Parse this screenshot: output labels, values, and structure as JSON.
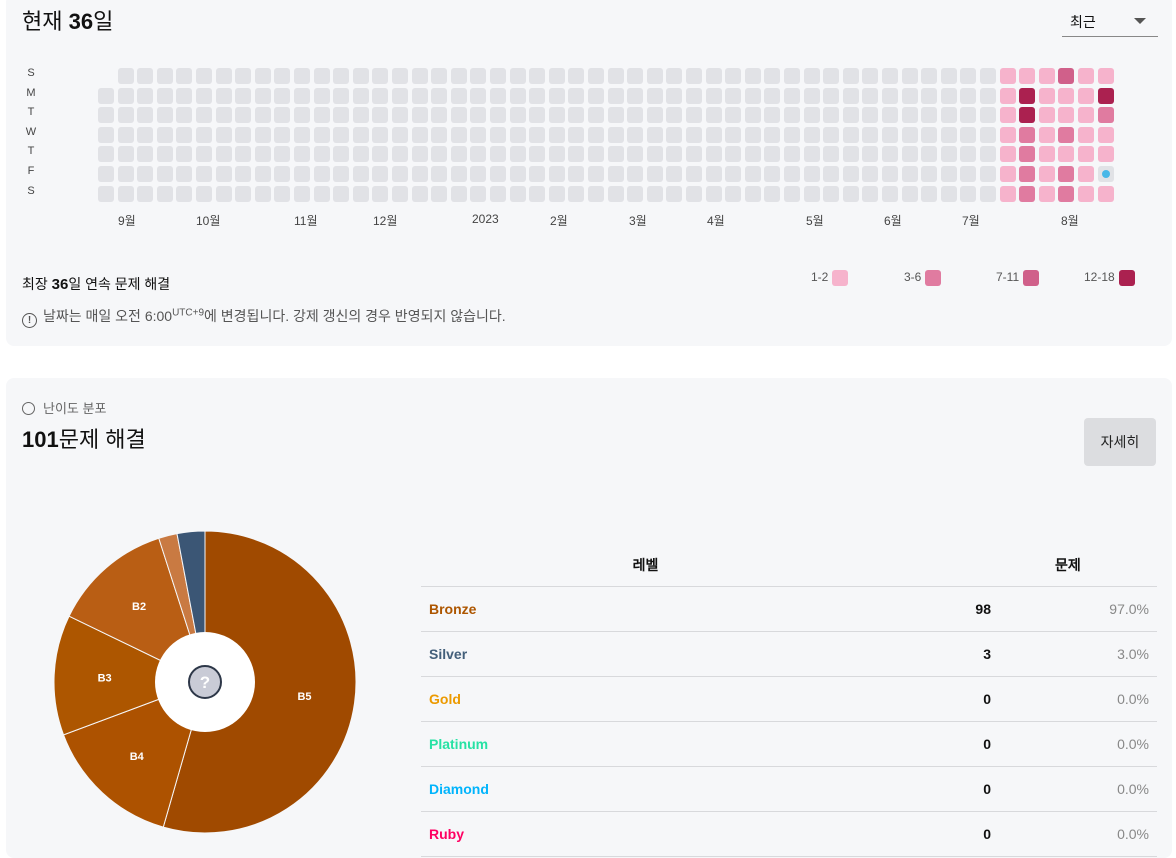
{
  "header": {
    "title_prefix": "현재 ",
    "streak": "36",
    "title_suffix": "일"
  },
  "period_select": {
    "selected": "최근"
  },
  "day_labels": [
    "S",
    "M",
    "T",
    "W",
    "T",
    "F",
    "S"
  ],
  "month_labels": [
    "9월",
    "10월",
    "11월",
    "12월",
    "2023",
    "2월",
    "3월",
    "4월",
    "5월",
    "6월",
    "7월",
    "8월"
  ],
  "heatmap": {
    "weeks": 52,
    "first_week_start_day": 1,
    "last_week_end_day": 6,
    "colors": {
      "0": "#e1e2e6",
      "1": "#f6b3cc",
      "2": "#e07ba0",
      "3": "#d0608a",
      "4": "#ab2150"
    },
    "active_weeks": [
      [
        1,
        1,
        1,
        1,
        1,
        1,
        1
      ],
      [
        1,
        4,
        4,
        2,
        2,
        2,
        2
      ],
      [
        1,
        1,
        1,
        1,
        1,
        1,
        1
      ],
      [
        3,
        1,
        1,
        2,
        1,
        2,
        2
      ],
      [
        1,
        1,
        1,
        1,
        1,
        1,
        1
      ],
      [
        1,
        4,
        2,
        1,
        1,
        "today",
        1
      ]
    ],
    "today_dot_color": "#49b8e8"
  },
  "max_streak": {
    "prefix": "최장 ",
    "value": "36",
    "suffix": "일 연속 문제 해결"
  },
  "legend": [
    {
      "label": "1-2",
      "color": "#f6b3cc"
    },
    {
      "label": "3-6",
      "color": "#e07ba0"
    },
    {
      "label": "7-11",
      "color": "#d0608a"
    },
    {
      "label": "12-18",
      "color": "#ab2150"
    }
  ],
  "notice": {
    "before": "날짜는 매일 오전 6:00",
    "sup": "UTC+9",
    "after": "에 변경됩니다. 강제 갱신의 경우 반영되지 않습니다."
  },
  "distribution": {
    "small_title": "난이도 분포",
    "count": "101",
    "suffix": "문제 해결",
    "detail_button": "자세히"
  },
  "chart_data": {
    "type": "pie",
    "title": "",
    "slices": [
      {
        "label": "B5",
        "value": 55,
        "color": "#a04a00"
      },
      {
        "label": "B4",
        "value": 15,
        "color": "#ad5200"
      },
      {
        "label": "B3",
        "value": 13,
        "color": "#ad5600"
      },
      {
        "label": "B2",
        "value": 13,
        "color": "#b95e14"
      },
      {
        "label": "",
        "value": 2,
        "color": "#c97a42"
      },
      {
        "label": "",
        "value": 3,
        "color": "#3b5675"
      }
    ],
    "center_icon": "question-icon"
  },
  "table": {
    "headers": [
      "레벨",
      "문제"
    ],
    "rows": [
      {
        "name": "Bronze",
        "color": "#ad5600",
        "count": "98",
        "pct": "97.0%"
      },
      {
        "name": "Silver",
        "color": "#435f7a",
        "count": "3",
        "pct": "3.0%"
      },
      {
        "name": "Gold",
        "color": "#ec9a00",
        "count": "0",
        "pct": "0.0%"
      },
      {
        "name": "Platinum",
        "color": "#27e2a4",
        "count": "0",
        "pct": "0.0%"
      },
      {
        "name": "Diamond",
        "color": "#00b4fc",
        "count": "0",
        "pct": "0.0%"
      },
      {
        "name": "Ruby",
        "color": "#ff0062",
        "count": "0",
        "pct": "0.0%"
      }
    ]
  }
}
